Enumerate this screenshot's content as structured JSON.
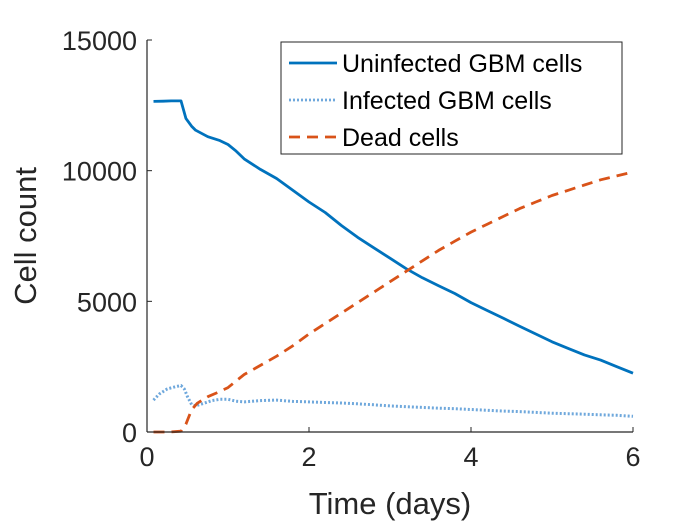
{
  "chart_data": {
    "type": "line",
    "xlabel": "Time (days)",
    "ylabel": "Cell count",
    "xlim": [
      0,
      6
    ],
    "ylim": [
      0,
      15000
    ],
    "xticks": [
      0,
      2,
      4,
      6
    ],
    "yticks": [
      0,
      5000,
      10000,
      15000
    ],
    "grid": false,
    "legend_position": "top-right",
    "series": [
      {
        "name": "Uninfected GBM cells",
        "color": "#0072BD",
        "style": "solid",
        "points": [
          [
            0.08,
            12650
          ],
          [
            0.2,
            12660
          ],
          [
            0.3,
            12670
          ],
          [
            0.42,
            12670
          ],
          [
            0.48,
            12000
          ],
          [
            0.55,
            11700
          ],
          [
            0.6,
            11550
          ],
          [
            0.75,
            11300
          ],
          [
            0.9,
            11150
          ],
          [
            1.0,
            11000
          ],
          [
            1.1,
            10750
          ],
          [
            1.2,
            10450
          ],
          [
            1.4,
            10050
          ],
          [
            1.6,
            9700
          ],
          [
            1.8,
            9250
          ],
          [
            2.0,
            8800
          ],
          [
            2.2,
            8400
          ],
          [
            2.4,
            7900
          ],
          [
            2.6,
            7450
          ],
          [
            2.8,
            7050
          ],
          [
            3.0,
            6650
          ],
          [
            3.2,
            6250
          ],
          [
            3.4,
            5900
          ],
          [
            3.6,
            5600
          ],
          [
            3.8,
            5300
          ],
          [
            4.0,
            4950
          ],
          [
            4.2,
            4650
          ],
          [
            4.4,
            4350
          ],
          [
            4.6,
            4050
          ],
          [
            4.8,
            3750
          ],
          [
            5.0,
            3450
          ],
          [
            5.2,
            3200
          ],
          [
            5.4,
            2950
          ],
          [
            5.6,
            2750
          ],
          [
            5.8,
            2500
          ],
          [
            6.0,
            2250
          ]
        ]
      },
      {
        "name": "Infected GBM cells",
        "color": "#6FA8DC",
        "style": "dotted",
        "points": [
          [
            0.08,
            1220
          ],
          [
            0.15,
            1450
          ],
          [
            0.25,
            1650
          ],
          [
            0.35,
            1730
          ],
          [
            0.42,
            1780
          ],
          [
            0.46,
            1650
          ],
          [
            0.5,
            1350
          ],
          [
            0.55,
            1050
          ],
          [
            0.6,
            1000
          ],
          [
            0.7,
            1100
          ],
          [
            0.8,
            1200
          ],
          [
            0.9,
            1250
          ],
          [
            1.0,
            1250
          ],
          [
            1.1,
            1180
          ],
          [
            1.2,
            1150
          ],
          [
            1.4,
            1200
          ],
          [
            1.6,
            1220
          ],
          [
            1.8,
            1170
          ],
          [
            2.0,
            1150
          ],
          [
            2.2,
            1130
          ],
          [
            2.4,
            1110
          ],
          [
            2.6,
            1080
          ],
          [
            2.8,
            1040
          ],
          [
            3.0,
            1000
          ],
          [
            3.2,
            970
          ],
          [
            3.4,
            940
          ],
          [
            3.6,
            910
          ],
          [
            3.8,
            890
          ],
          [
            4.0,
            860
          ],
          [
            4.2,
            830
          ],
          [
            4.4,
            800
          ],
          [
            4.6,
            780
          ],
          [
            4.8,
            750
          ],
          [
            5.0,
            720
          ],
          [
            5.2,
            700
          ],
          [
            5.4,
            680
          ],
          [
            5.6,
            660
          ],
          [
            5.8,
            640
          ],
          [
            6.0,
            600
          ]
        ]
      },
      {
        "name": "Dead cells",
        "color": "#D95319",
        "style": "dashed",
        "points": [
          [
            0.08,
            0
          ],
          [
            0.2,
            0
          ],
          [
            0.3,
            5
          ],
          [
            0.42,
            30
          ],
          [
            0.48,
            300
          ],
          [
            0.55,
            850
          ],
          [
            0.62,
            1100
          ],
          [
            0.75,
            1350
          ],
          [
            0.9,
            1550
          ],
          [
            1.0,
            1700
          ],
          [
            1.1,
            1950
          ],
          [
            1.2,
            2200
          ],
          [
            1.4,
            2550
          ],
          [
            1.6,
            2900
          ],
          [
            1.8,
            3300
          ],
          [
            2.0,
            3750
          ],
          [
            2.2,
            4150
          ],
          [
            2.4,
            4550
          ],
          [
            2.6,
            4950
          ],
          [
            2.8,
            5350
          ],
          [
            3.0,
            5750
          ],
          [
            3.2,
            6150
          ],
          [
            3.4,
            6550
          ],
          [
            3.6,
            6950
          ],
          [
            3.8,
            7300
          ],
          [
            4.0,
            7650
          ],
          [
            4.2,
            7950
          ],
          [
            4.4,
            8250
          ],
          [
            4.6,
            8550
          ],
          [
            4.8,
            8800
          ],
          [
            5.0,
            9050
          ],
          [
            5.2,
            9250
          ],
          [
            5.4,
            9450
          ],
          [
            5.6,
            9650
          ],
          [
            5.8,
            9800
          ],
          [
            6.0,
            9950
          ]
        ]
      }
    ]
  }
}
